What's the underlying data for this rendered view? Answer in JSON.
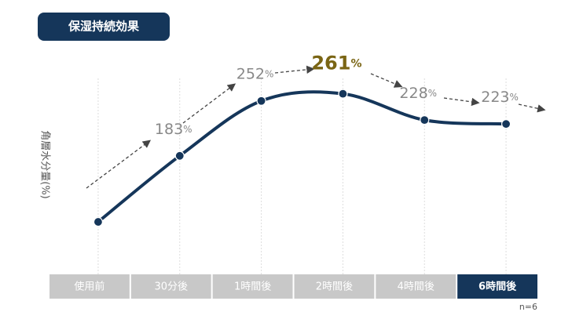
{
  "chart_data": {
    "type": "line",
    "title": "保湿持続効果",
    "y_label": "角層水分量(%)",
    "categories": [
      "使用前",
      "30分後",
      "1時間後",
      "2時間後",
      "4時間後",
      "6時間後"
    ],
    "values": [
      100,
      183,
      252,
      261,
      228,
      223
    ],
    "value_labels": [
      null,
      "183%",
      "252%",
      "261%",
      "228%",
      "223%"
    ],
    "color": "#15365a",
    "highlight_index": 5,
    "highlight_label_index": 3,
    "ylim": [
      40,
      300
    ],
    "note": "n=6"
  }
}
